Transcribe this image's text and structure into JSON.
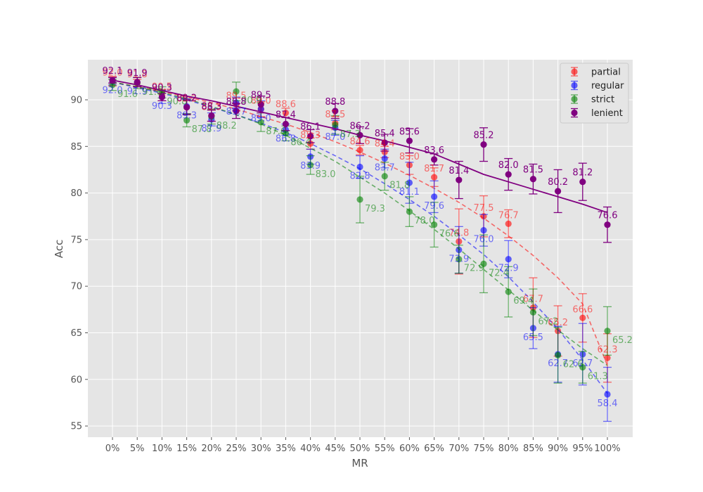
{
  "chart_data": {
    "type": "scatter",
    "title": "",
    "xlabel": "MR",
    "ylabel": "Acc",
    "categories": [
      "0%",
      "5%",
      "10%",
      "15%",
      "20%",
      "25%",
      "30%",
      "35%",
      "40%",
      "45%",
      "50%",
      "55%",
      "60%",
      "65%",
      "70%",
      "75%",
      "80%",
      "85%",
      "90%",
      "95%",
      "100%"
    ],
    "ylim": [
      53.8,
      94.3
    ],
    "yticks": [
      55,
      60,
      65,
      70,
      75,
      80,
      85,
      90
    ],
    "grid": true,
    "legend_position": "top-right",
    "series": [
      {
        "name": "partial",
        "color": "#ff0000",
        "values": [
          92.0,
          91.8,
          90.5,
          89.2,
          88.3,
          89.5,
          89.0,
          88.6,
          85.3,
          87.5,
          84.6,
          84.4,
          83.0,
          81.7,
          74.8,
          77.5,
          76.7,
          67.7,
          65.2,
          66.6,
          62.3
        ],
        "errors": [
          0.5,
          0.4,
          0.6,
          0.7,
          0.6,
          0.7,
          0.8,
          0.5,
          0.6,
          0.7,
          0.5,
          0.6,
          1.0,
          1.0,
          3.5,
          2.2,
          1.5,
          3.2,
          2.7,
          2.6,
          2.6
        ],
        "trend": [
          91.9,
          91.4,
          90.9,
          90.3,
          89.7,
          89.0,
          88.2,
          87.4,
          86.5,
          85.5,
          84.4,
          83.2,
          81.9,
          80.5,
          79.0,
          77.3,
          75.4,
          73.3,
          70.9,
          68.1,
          61.5
        ]
      },
      {
        "name": "regular",
        "color": "#0000ff",
        "values": [
          92.0,
          91.9,
          90.3,
          89.3,
          87.9,
          89.7,
          89.0,
          86.8,
          83.9,
          87.0,
          82.8,
          83.7,
          81.1,
          79.6,
          73.9,
          76.0,
          72.9,
          65.5,
          62.7,
          62.7,
          58.4
        ],
        "errors": [
          0.4,
          0.5,
          0.7,
          0.8,
          0.7,
          0.6,
          0.9,
          0.6,
          0.8,
          0.8,
          1.2,
          1.0,
          2.2,
          1.7,
          2.5,
          1.7,
          2.0,
          2.2,
          3.0,
          3.3,
          2.9
        ],
        "trend": [
          91.9,
          91.3,
          90.7,
          90.0,
          89.2,
          88.4,
          87.5,
          86.5,
          85.3,
          84.0,
          82.6,
          81.0,
          79.3,
          77.5,
          75.5,
          73.4,
          71.0,
          68.3,
          65.4,
          62.1,
          58.5
        ]
      },
      {
        "name": "strict",
        "color": "#008000",
        "values": [
          91.6,
          91.8,
          90.8,
          87.8,
          88.2,
          90.9,
          87.6,
          86.4,
          83.0,
          87.3,
          79.3,
          81.8,
          78.0,
          76.6,
          72.9,
          72.4,
          69.4,
          67.2,
          62.6,
          61.3,
          65.2
        ],
        "errors": [
          0.6,
          0.6,
          0.6,
          0.7,
          0.8,
          1.0,
          1.0,
          0.8,
          1.0,
          1.0,
          2.5,
          1.5,
          1.6,
          2.4,
          1.5,
          3.1,
          2.7,
          2.5,
          3.0,
          1.7,
          2.6
        ],
        "trend": [
          91.9,
          91.4,
          90.8,
          90.1,
          89.3,
          88.4,
          87.4,
          86.2,
          84.8,
          83.4,
          81.7,
          80.0,
          78.1,
          76.1,
          74.0,
          71.8,
          69.6,
          67.4,
          65.3,
          63.3,
          61.5
        ]
      },
      {
        "name": "lenient",
        "color": "#800080",
        "values": [
          92.1,
          91.9,
          90.3,
          89.2,
          88.3,
          88.8,
          89.5,
          87.4,
          86.1,
          88.8,
          86.2,
          85.4,
          85.6,
          83.6,
          81.4,
          85.2,
          82.0,
          81.5,
          80.2,
          81.2,
          76.6
        ],
        "errors": [
          0.3,
          0.5,
          0.4,
          0.8,
          0.6,
          0.8,
          0.9,
          0.7,
          0.7,
          0.8,
          0.9,
          0.9,
          1.3,
          0.6,
          2.0,
          1.8,
          1.7,
          1.6,
          2.3,
          2.0,
          1.9
        ],
        "trend": [
          92.1,
          91.6,
          91.0,
          90.4,
          89.9,
          89.3,
          88.7,
          88.1,
          87.5,
          86.9,
          86.2,
          85.6,
          84.9,
          84.2,
          83.1,
          82.0,
          81.2,
          80.4,
          79.6,
          78.8,
          77.9
        ]
      }
    ]
  }
}
